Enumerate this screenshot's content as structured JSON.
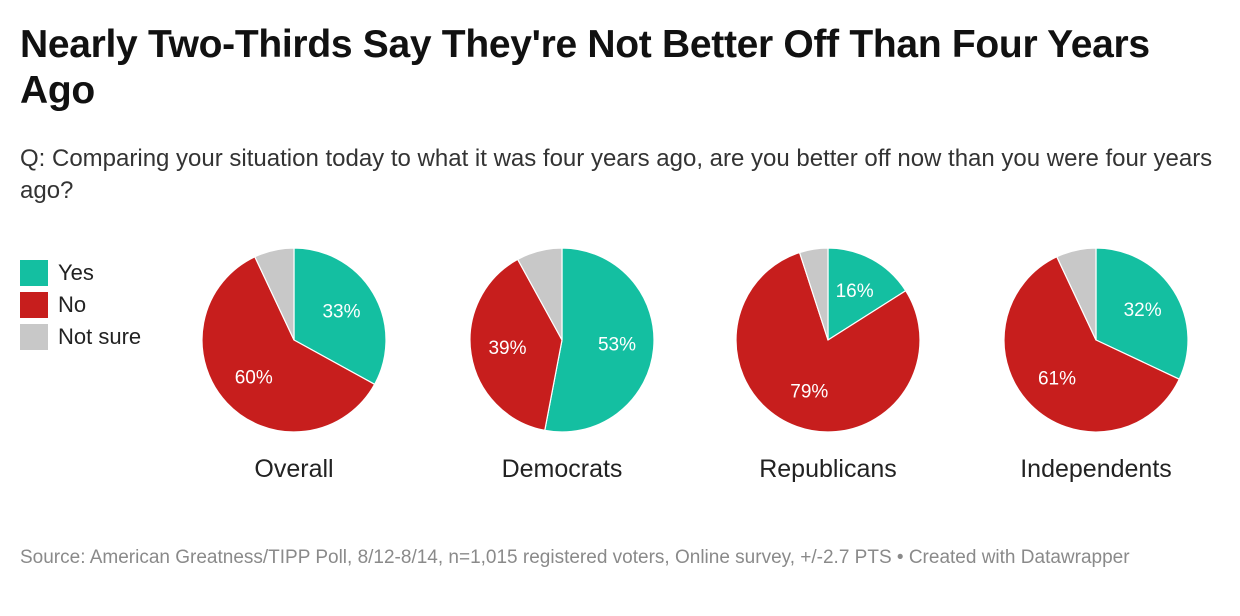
{
  "title": "Nearly Two-Thirds Say They're Not Better Off Than Four Years Ago",
  "subtitle": "Q: Comparing your situation today to what it was four years ago, are you better off now than you were four years ago?",
  "source": "Source: American Greatness/TIPP Poll, 8/12-8/14, n=1,015 registered voters, Online survey, +/-2.7 PTS • Created with Datawrapper",
  "colors": {
    "yes": "#14bfa1",
    "no": "#c71e1d",
    "not_sure": "#c8c8c8"
  },
  "legend": [
    {
      "label": "Yes",
      "color": "#14bfa1"
    },
    {
      "label": "No",
      "color": "#c71e1d"
    },
    {
      "label": "Not sure",
      "color": "#c8c8c8"
    }
  ],
  "chart_data": {
    "type": "pie",
    "categories": [
      "Yes",
      "No",
      "Not sure"
    ],
    "charts": [
      {
        "name": "Overall",
        "values": [
          33,
          60,
          7
        ],
        "labels": [
          "33%",
          "60%",
          ""
        ]
      },
      {
        "name": "Democrats",
        "values": [
          53,
          39,
          8
        ],
        "labels": [
          "53%",
          "39%",
          ""
        ]
      },
      {
        "name": "Republicans",
        "values": [
          16,
          79,
          5
        ],
        "labels": [
          "16%",
          "79%",
          ""
        ]
      },
      {
        "name": "Independents",
        "values": [
          32,
          61,
          7
        ],
        "labels": [
          "32%",
          "61%",
          ""
        ]
      }
    ]
  }
}
